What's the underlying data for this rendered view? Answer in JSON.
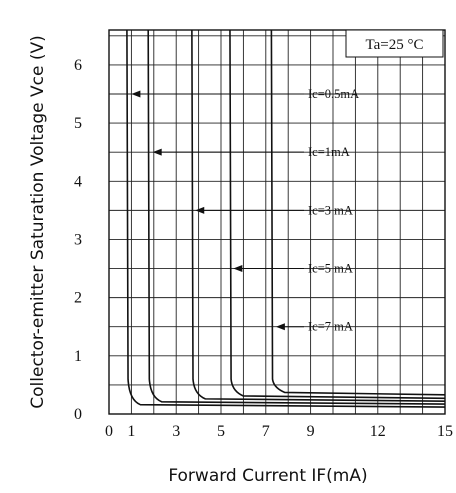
{
  "chart_data": {
    "type": "line",
    "title": "",
    "xlabel": "Forward Current IF(mA)",
    "ylabel": "Collector-emitter Saturation Voltage Vce (V)",
    "xlim": [
      0,
      15
    ],
    "ylim": [
      0,
      6.6
    ],
    "x_ticks": [
      0,
      1,
      3,
      5,
      7,
      9,
      12,
      15
    ],
    "x_tick_labels": [
      "0",
      "1",
      "3",
      "5",
      "7",
      "9",
      "12",
      "15"
    ],
    "y_ticks": [
      0,
      1,
      2,
      3,
      4,
      5,
      6
    ],
    "y_tick_labels": [
      "0",
      "1",
      "2",
      "3",
      "4",
      "5",
      "6"
    ],
    "grid": true,
    "condition": "Ta=25 °C",
    "series": [
      {
        "name": "Ic=0.5mA",
        "knee": 0.8,
        "floor": 0.12,
        "x": [
          0.8,
          0.85,
          1,
          2,
          4,
          8,
          15
        ],
        "values": [
          6.6,
          0.4,
          0.26,
          0.2,
          0.17,
          0.15,
          0.13
        ]
      },
      {
        "name": "Ic=1mA",
        "knee": 1.75,
        "floor": 0.17,
        "x": [
          1.75,
          1.8,
          2,
          3,
          5,
          10,
          15
        ],
        "values": [
          6.6,
          0.45,
          0.3,
          0.23,
          0.2,
          0.18,
          0.17
        ]
      },
      {
        "name": "Ic=3 mA",
        "knee": 3.7,
        "floor": 0.22,
        "x": [
          3.7,
          3.75,
          4,
          5,
          7,
          11,
          15
        ],
        "values": [
          6.6,
          0.55,
          0.35,
          0.28,
          0.25,
          0.23,
          0.22
        ]
      },
      {
        "name": "Ic=5 mA",
        "knee": 5.4,
        "floor": 0.27,
        "x": [
          5.4,
          5.45,
          5.7,
          7,
          9,
          12,
          15
        ],
        "values": [
          6.6,
          0.6,
          0.4,
          0.32,
          0.3,
          0.28,
          0.27
        ]
      },
      {
        "name": "Ic=7 mA",
        "knee": 7.25,
        "floor": 0.33,
        "x": [
          7.25,
          7.3,
          7.5,
          9,
          11,
          13,
          15
        ],
        "values": [
          6.6,
          0.65,
          0.45,
          0.38,
          0.36,
          0.34,
          0.33
        ]
      }
    ],
    "annotations": [
      {
        "text": "Ic=0.5mA",
        "x": 1.0,
        "y": 5.5
      },
      {
        "text": "Ic=1mA",
        "x": 1.95,
        "y": 4.5
      },
      {
        "text": "Ic=3 mA",
        "x": 3.85,
        "y": 3.5
      },
      {
        "text": "Ic=5 mA",
        "x": 5.55,
        "y": 2.5
      },
      {
        "text": "Ic=7 mA",
        "x": 7.45,
        "y": 1.5
      }
    ]
  }
}
